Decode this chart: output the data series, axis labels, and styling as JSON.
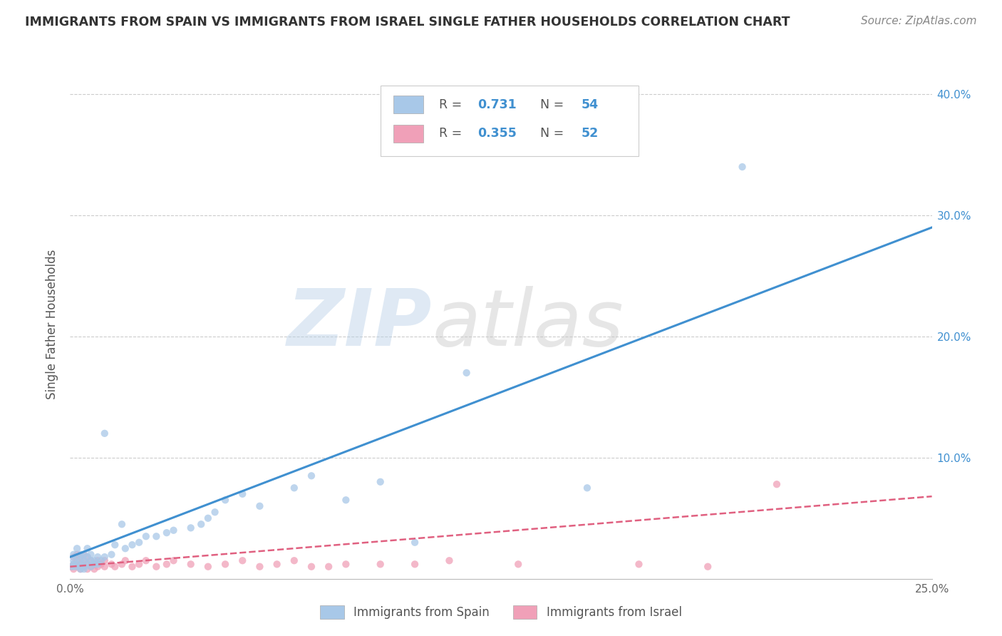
{
  "title": "IMMIGRANTS FROM SPAIN VS IMMIGRANTS FROM ISRAEL SINGLE FATHER HOUSEHOLDS CORRELATION CHART",
  "source_text": "Source: ZipAtlas.com",
  "ylabel": "Single Father Households",
  "xlim": [
    0.0,
    0.25
  ],
  "ylim": [
    0.0,
    0.42
  ],
  "xticks": [
    0.0,
    0.05,
    0.1,
    0.15,
    0.2,
    0.25
  ],
  "xticklabels": [
    "0.0%",
    "",
    "",
    "",
    "",
    "25.0%"
  ],
  "yticks": [
    0.0,
    0.1,
    0.2,
    0.3,
    0.4
  ],
  "yticklabels_right": [
    "",
    "10.0%",
    "20.0%",
    "30.0%",
    "40.0%"
  ],
  "watermark_zip": "ZIP",
  "watermark_atlas": "atlas",
  "legend_labels": [
    "Immigrants from Spain",
    "Immigrants from Israel"
  ],
  "R_spain": "0.731",
  "N_spain": "54",
  "R_israel": "0.355",
  "N_israel": "52",
  "color_spain": "#a8c8e8",
  "color_israel": "#f0a0b8",
  "line_color_spain": "#4090d0",
  "line_color_israel": "#e06080",
  "title_color": "#333333",
  "source_color": "#888888",
  "accent_color": "#4090d0",
  "background_color": "#ffffff",
  "grid_color": "#cccccc",
  "spain_line_x0": 0.0,
  "spain_line_y0": 0.018,
  "spain_line_x1": 0.25,
  "spain_line_y1": 0.29,
  "israel_line_x0": 0.0,
  "israel_line_y0": 0.01,
  "israel_line_x1": 0.25,
  "israel_line_y1": 0.068,
  "scatter_spain_x": [
    0.0005,
    0.001,
    0.001,
    0.001,
    0.0015,
    0.002,
    0.002,
    0.002,
    0.003,
    0.003,
    0.003,
    0.003,
    0.004,
    0.004,
    0.004,
    0.004,
    0.005,
    0.005,
    0.005,
    0.006,
    0.006,
    0.006,
    0.007,
    0.007,
    0.008,
    0.008,
    0.009,
    0.01,
    0.01,
    0.012,
    0.013,
    0.015,
    0.016,
    0.018,
    0.02,
    0.022,
    0.025,
    0.028,
    0.03,
    0.035,
    0.038,
    0.04,
    0.042,
    0.045,
    0.05,
    0.055,
    0.065,
    0.07,
    0.08,
    0.09,
    0.1,
    0.115,
    0.15,
    0.195
  ],
  "scatter_spain_y": [
    0.01,
    0.012,
    0.015,
    0.02,
    0.01,
    0.012,
    0.018,
    0.025,
    0.01,
    0.015,
    0.02,
    0.008,
    0.01,
    0.015,
    0.02,
    0.008,
    0.012,
    0.018,
    0.025,
    0.015,
    0.02,
    0.01,
    0.015,
    0.012,
    0.018,
    0.012,
    0.015,
    0.018,
    0.12,
    0.02,
    0.028,
    0.045,
    0.025,
    0.028,
    0.03,
    0.035,
    0.035,
    0.038,
    0.04,
    0.042,
    0.045,
    0.05,
    0.055,
    0.065,
    0.07,
    0.06,
    0.075,
    0.085,
    0.065,
    0.08,
    0.03,
    0.17,
    0.075,
    0.34
  ],
  "scatter_israel_x": [
    0.0005,
    0.001,
    0.001,
    0.001,
    0.002,
    0.002,
    0.002,
    0.003,
    0.003,
    0.003,
    0.004,
    0.004,
    0.004,
    0.005,
    0.005,
    0.005,
    0.006,
    0.006,
    0.007,
    0.007,
    0.008,
    0.008,
    0.009,
    0.01,
    0.01,
    0.012,
    0.013,
    0.015,
    0.016,
    0.018,
    0.02,
    0.022,
    0.025,
    0.028,
    0.03,
    0.035,
    0.04,
    0.045,
    0.05,
    0.055,
    0.06,
    0.065,
    0.07,
    0.075,
    0.08,
    0.09,
    0.1,
    0.11,
    0.13,
    0.165,
    0.185,
    0.205
  ],
  "scatter_israel_y": [
    0.01,
    0.008,
    0.012,
    0.018,
    0.01,
    0.015,
    0.02,
    0.008,
    0.012,
    0.018,
    0.01,
    0.015,
    0.02,
    0.008,
    0.012,
    0.018,
    0.01,
    0.015,
    0.008,
    0.012,
    0.01,
    0.015,
    0.012,
    0.01,
    0.015,
    0.012,
    0.01,
    0.012,
    0.015,
    0.01,
    0.012,
    0.015,
    0.01,
    0.012,
    0.015,
    0.012,
    0.01,
    0.012,
    0.015,
    0.01,
    0.012,
    0.015,
    0.01,
    0.01,
    0.012,
    0.012,
    0.012,
    0.015,
    0.012,
    0.012,
    0.01,
    0.078
  ]
}
